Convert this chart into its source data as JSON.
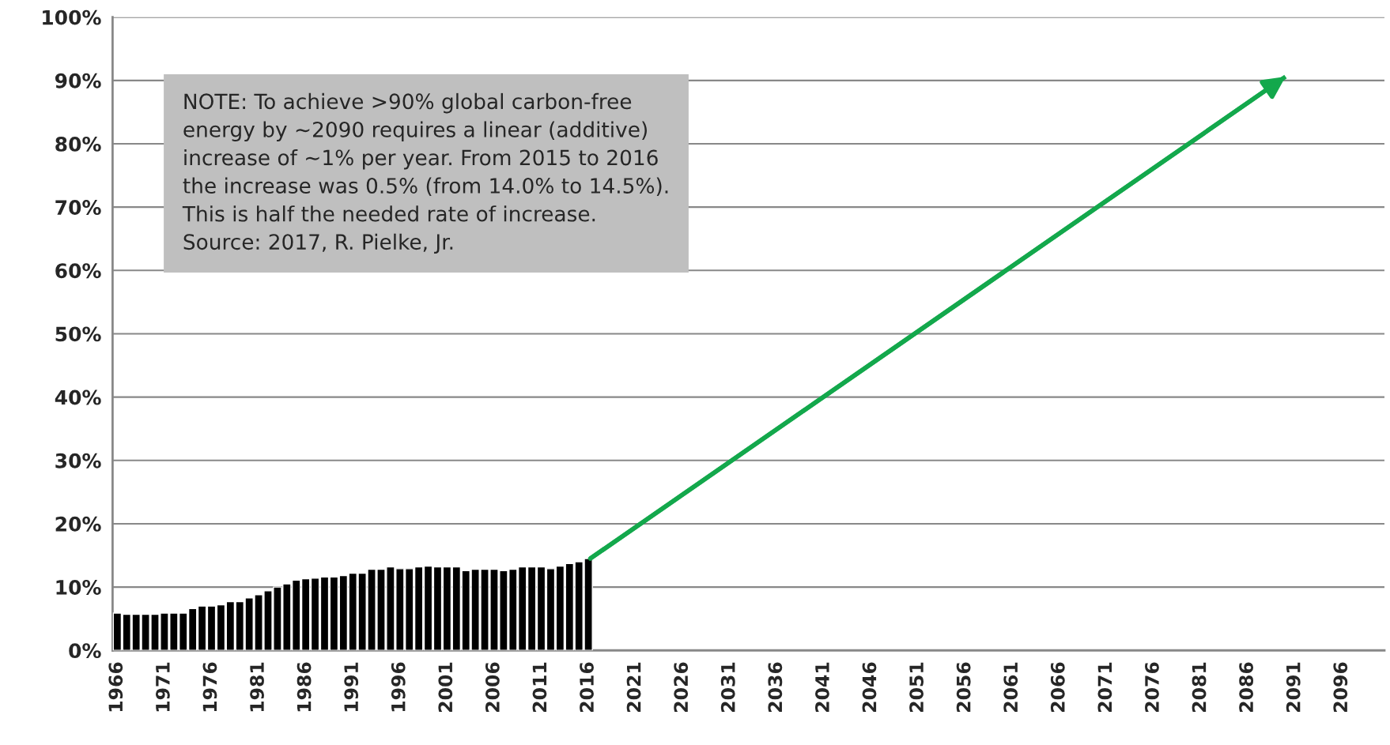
{
  "chart_data": {
    "type": "bar",
    "x": [
      1966,
      1967,
      1968,
      1969,
      1970,
      1971,
      1972,
      1973,
      1974,
      1975,
      1976,
      1977,
      1978,
      1979,
      1980,
      1981,
      1982,
      1983,
      1984,
      1985,
      1986,
      1987,
      1988,
      1989,
      1990,
      1991,
      1992,
      1993,
      1994,
      1995,
      1996,
      1997,
      1998,
      1999,
      2000,
      2001,
      2002,
      2003,
      2004,
      2005,
      2006,
      2007,
      2008,
      2009,
      2010,
      2011,
      2012,
      2013,
      2014,
      2015,
      2016
    ],
    "series": [
      {
        "color": "#000000",
        "values": [
          5.9,
          5.7,
          5.7,
          5.7,
          5.7,
          5.9,
          5.9,
          5.9,
          6.6,
          7.0,
          7.0,
          7.2,
          7.7,
          7.7,
          8.3,
          8.8,
          9.4,
          10.0,
          10.5,
          11.1,
          11.3,
          11.4,
          11.6,
          11.6,
          11.8,
          12.2,
          12.2,
          12.8,
          12.8,
          13.2,
          12.9,
          12.9,
          13.2,
          13.3,
          13.2,
          13.2,
          13.2,
          12.6,
          12.8,
          12.8,
          12.8,
          12.6,
          12.8,
          13.2,
          13.2,
          13.2,
          12.9,
          13.3,
          13.7,
          14.0,
          14.5
        ]
      },
      {
        "type": "line",
        "color": "#13a84c",
        "x": [
          2016.2,
          2090
        ],
        "values": [
          14.5,
          90.6
        ]
      }
    ],
    "xlim": [
      1965.5,
      2100.5
    ],
    "xticks": [
      1966,
      1971,
      1976,
      1981,
      1986,
      1991,
      1996,
      2001,
      2006,
      2011,
      2016,
      2021,
      2026,
      2031,
      2036,
      2041,
      2046,
      2051,
      2056,
      2061,
      2066,
      2071,
      2076,
      2081,
      2086,
      2091,
      2096
    ],
    "ylim": [
      0,
      100
    ],
    "yticks": [
      {
        "value": 0,
        "label": "0%"
      },
      {
        "value": 10,
        "label": "10%"
      },
      {
        "value": 20,
        "label": "20%"
      },
      {
        "value": 30,
        "label": "30%"
      },
      {
        "value": 40,
        "label": "40%"
      },
      {
        "value": 50,
        "label": "50%"
      },
      {
        "value": 60,
        "label": "60%"
      },
      {
        "value": 70,
        "label": "70%"
      },
      {
        "value": 80,
        "label": "80%"
      },
      {
        "value": 90,
        "label": "90%"
      },
      {
        "value": 100,
        "label": "100%"
      }
    ],
    "grid": "y",
    "annotations": [
      "NOTE: To achieve >90% global carbon-free\nenergy by ~2090 requires a linear (additive)\nincrease of ~1% per year. From 2015 to 2016\nthe increase was 0.5% (from 14.0% to 14.5%).\nThis is half the needed rate of increase.\nSource: 2017, R. Pielke, Jr."
    ]
  }
}
